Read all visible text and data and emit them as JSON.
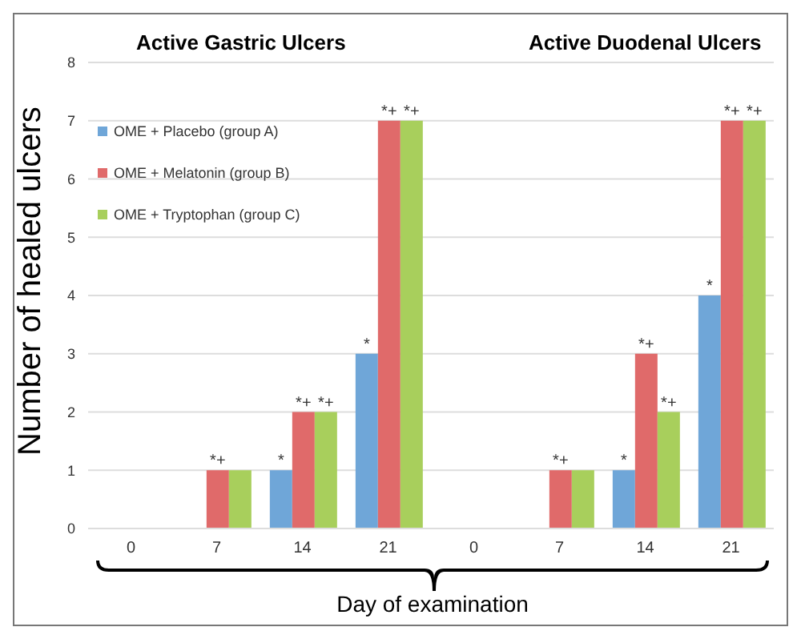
{
  "chart_data": {
    "type": "bar",
    "xlabel": "Day of examination",
    "ylabel": "Number of healed ulcers",
    "annotations": [
      "Active Gastric Ulcers",
      "Active Duodenal Ulcers"
    ],
    "categories": [
      "0",
      "7",
      "14",
      "21",
      "0",
      "7",
      "14",
      "21"
    ],
    "series": [
      {
        "name": "OME + Placebo (group A)",
        "color": "#6fa6d8",
        "values": [
          0,
          0,
          1,
          3,
          0,
          0,
          1,
          4
        ],
        "value_labels": [
          null,
          null,
          "*",
          "*",
          null,
          null,
          "*",
          "*"
        ]
      },
      {
        "name": "OME + Melatonin (group B)",
        "color": "#e06a6a",
        "values": [
          0,
          1,
          2,
          7,
          0,
          1,
          3,
          7
        ],
        "value_labels": [
          null,
          "*+",
          "*+",
          "*+",
          null,
          "*+",
          "*+",
          "*+"
        ]
      },
      {
        "name": "OME + Tryptophan (group C)",
        "color": "#a8cf5c",
        "values": [
          0,
          1,
          2,
          7,
          0,
          1,
          2,
          7
        ],
        "value_labels": [
          null,
          null,
          "*+",
          "*+",
          null,
          null,
          "*+",
          "*+"
        ]
      }
    ],
    "ylim": [
      0,
      8
    ],
    "yticks": [
      0,
      1,
      2,
      3,
      4,
      5,
      6,
      7,
      8
    ],
    "grid": "y",
    "legend": "top left"
  }
}
